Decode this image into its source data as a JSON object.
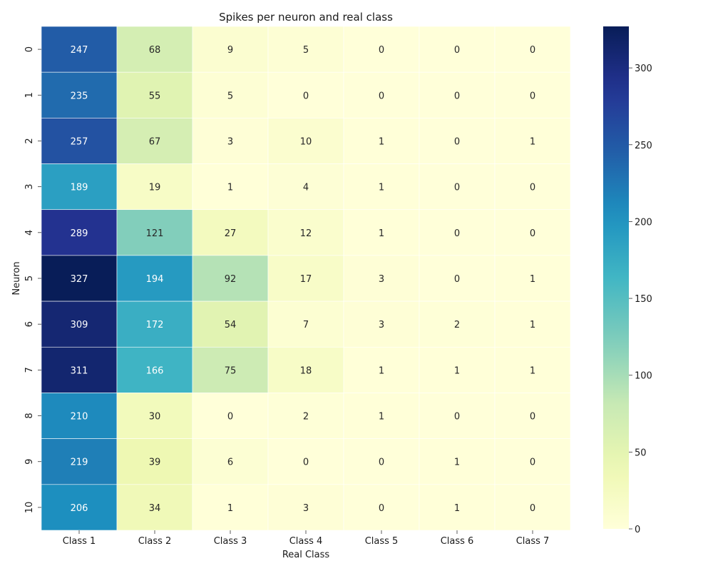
{
  "chart_data": {
    "type": "heatmap",
    "title": "Spikes per neuron and real class",
    "xlabel": "Real Class",
    "ylabel": "Neuron",
    "x_categories": [
      "Class 1",
      "Class 2",
      "Class 3",
      "Class 4",
      "Class 5",
      "Class 6",
      "Class 7"
    ],
    "y_categories": [
      "0",
      "1",
      "2",
      "3",
      "4",
      "5",
      "6",
      "7",
      "8",
      "9",
      "10"
    ],
    "values": [
      [
        247,
        68,
        9,
        5,
        0,
        0,
        0
      ],
      [
        235,
        55,
        5,
        0,
        0,
        0,
        0
      ],
      [
        257,
        67,
        3,
        10,
        1,
        0,
        1
      ],
      [
        189,
        19,
        1,
        4,
        1,
        0,
        0
      ],
      [
        289,
        121,
        27,
        12,
        1,
        0,
        0
      ],
      [
        327,
        194,
        92,
        17,
        3,
        0,
        1
      ],
      [
        309,
        172,
        54,
        7,
        3,
        2,
        1
      ],
      [
        311,
        166,
        75,
        18,
        1,
        1,
        1
      ],
      [
        210,
        30,
        0,
        2,
        1,
        0,
        0
      ],
      [
        219,
        39,
        6,
        0,
        0,
        1,
        0
      ],
      [
        206,
        34,
        1,
        3,
        0,
        1,
        0
      ]
    ],
    "value_range": [
      0,
      327
    ],
    "colormap": "YlGnBu",
    "colorbar_ticks": [
      0,
      50,
      100,
      150,
      200,
      250,
      300
    ],
    "annotations": true,
    "grid": false
  }
}
